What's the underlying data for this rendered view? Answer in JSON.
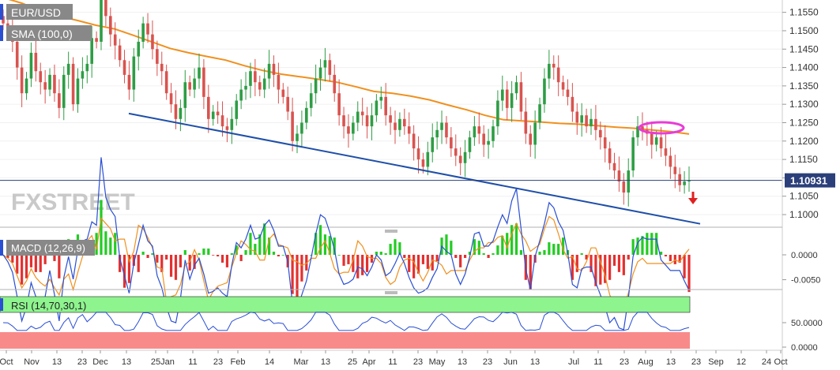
{
  "chart_data": [
    {
      "type": "candlestick",
      "title": "EUR/USD",
      "indicator_label": "SMA (100,0)",
      "watermark": "FXSTREET",
      "y_ticks": [
        "1.1550",
        "1.1500",
        "1.1450",
        "1.1400",
        "1.1350",
        "1.1300",
        "1.1250",
        "1.1200",
        "1.1150",
        "1.1100",
        "1.1050",
        "1.1000"
      ],
      "ylim": [
        1.097,
        1.1575
      ],
      "current_price": 1.10931,
      "current_price_label": "1.10931",
      "trendline": {
        "from": {
          "date": "Dec 13",
          "value": 1.1275
        },
        "to": {
          "date": "Aug 23",
          "value": 1.0975
        }
      },
      "sma_100": [
        1.158,
        1.153,
        1.148,
        1.143,
        1.14,
        1.138,
        1.136,
        1.131,
        1.127,
        1.123,
        1.12,
        1.1205,
        1.121,
        1.118,
        1.116,
        1.1135,
        1.1125,
        1.112,
        1.11,
        1.106,
        1.104,
        1.104,
        1.103,
        1.103,
        1.101,
        1.1,
        1.098,
        1.096,
        1.093,
        1.089,
        1.086,
        1.085,
        1.0835,
        1.082,
        1.081,
        1.08,
        1.0785,
        1.077
      ],
      "close": [
        1.152,
        1.15,
        1.147,
        1.14,
        1.133,
        1.137,
        1.144,
        1.139,
        1.136,
        1.134,
        1.138,
        1.133,
        1.129,
        1.138,
        1.141,
        1.13,
        1.137,
        1.139,
        1.141,
        1.148,
        1.147,
        1.16,
        1.154,
        1.149,
        1.146,
        1.142,
        1.138,
        1.134,
        1.143,
        1.147,
        1.152,
        1.149,
        1.145,
        1.141,
        1.139,
        1.133,
        1.13,
        1.126,
        1.129,
        1.136,
        1.134,
        1.137,
        1.14,
        1.132,
        1.126,
        1.128,
        1.127,
        1.124,
        1.123,
        1.126,
        1.131,
        1.134,
        1.135,
        1.139,
        1.136,
        1.134,
        1.137,
        1.141,
        1.138,
        1.134,
        1.132,
        1.128,
        1.12,
        1.122,
        1.125,
        1.129,
        1.133,
        1.137,
        1.14,
        1.142,
        1.138,
        1.133,
        1.127,
        1.124,
        1.122,
        1.125,
        1.128,
        1.127,
        1.124,
        1.127,
        1.131,
        1.132,
        1.127,
        1.125,
        1.123,
        1.126,
        1.124,
        1.122,
        1.118,
        1.115,
        1.113,
        1.117,
        1.121,
        1.123,
        1.125,
        1.121,
        1.118,
        1.116,
        1.114,
        1.117,
        1.121,
        1.124,
        1.122,
        1.119,
        1.12,
        1.124,
        1.131,
        1.134,
        1.129,
        1.133,
        1.136,
        1.128,
        1.122,
        1.119,
        1.125,
        1.13,
        1.137,
        1.141,
        1.14,
        1.136,
        1.134,
        1.132,
        1.128,
        1.125,
        1.127,
        1.124,
        1.126,
        1.123,
        1.121,
        1.118,
        1.114,
        1.112,
        1.109,
        1.106,
        1.112,
        1.121,
        1.124,
        1.123,
        1.122,
        1.119,
        1.121,
        1.118,
        1.116,
        1.113,
        1.111,
        1.108,
        1.109,
        1.1093
      ],
      "macd_ticks": [
        "0.0000",
        "-0.0050"
      ],
      "rsi_label": "RSI (14,70,30,1)",
      "rsi_ticks": [
        "50.0000",
        "0.0000"
      ],
      "rsi_zones": {
        "overbought": 70,
        "oversold": 30
      },
      "x_ticks": [
        "Oct",
        "Nov",
        "13",
        "23",
        "Dec",
        "13",
        "25",
        "Jan",
        "11",
        "23",
        "Feb",
        "14",
        "Mar",
        "13",
        "25",
        "Apr",
        "11",
        "23",
        "May",
        "13",
        "23",
        "Jun",
        "13",
        "Jul",
        "11",
        "23",
        "Aug",
        "13",
        "23",
        "Sep",
        "12",
        "24",
        "Oct"
      ],
      "annotations": [
        "magenta ellipse around recent SMA test",
        "red down arrow"
      ],
      "colors": {
        "bull": "#2e9d45",
        "bear": "#d9534f",
        "sma": "#f0901e",
        "trendline": "#1f4fa8",
        "price_line": "#2b3f7a",
        "ellipse": "#e83cd6",
        "macd_line": "#2a4fd3",
        "signal_line": "#f0901e",
        "hist_pos": "#22cc22",
        "hist_neg": "#e33030",
        "rsi_line": "#2a4fd3",
        "rsi_overbought_fill": "#8ef48e",
        "rsi_oversold_fill": "#f98a8a"
      }
    },
    {
      "type": "macd",
      "title": "MACD (12,26,9)"
    }
  ]
}
